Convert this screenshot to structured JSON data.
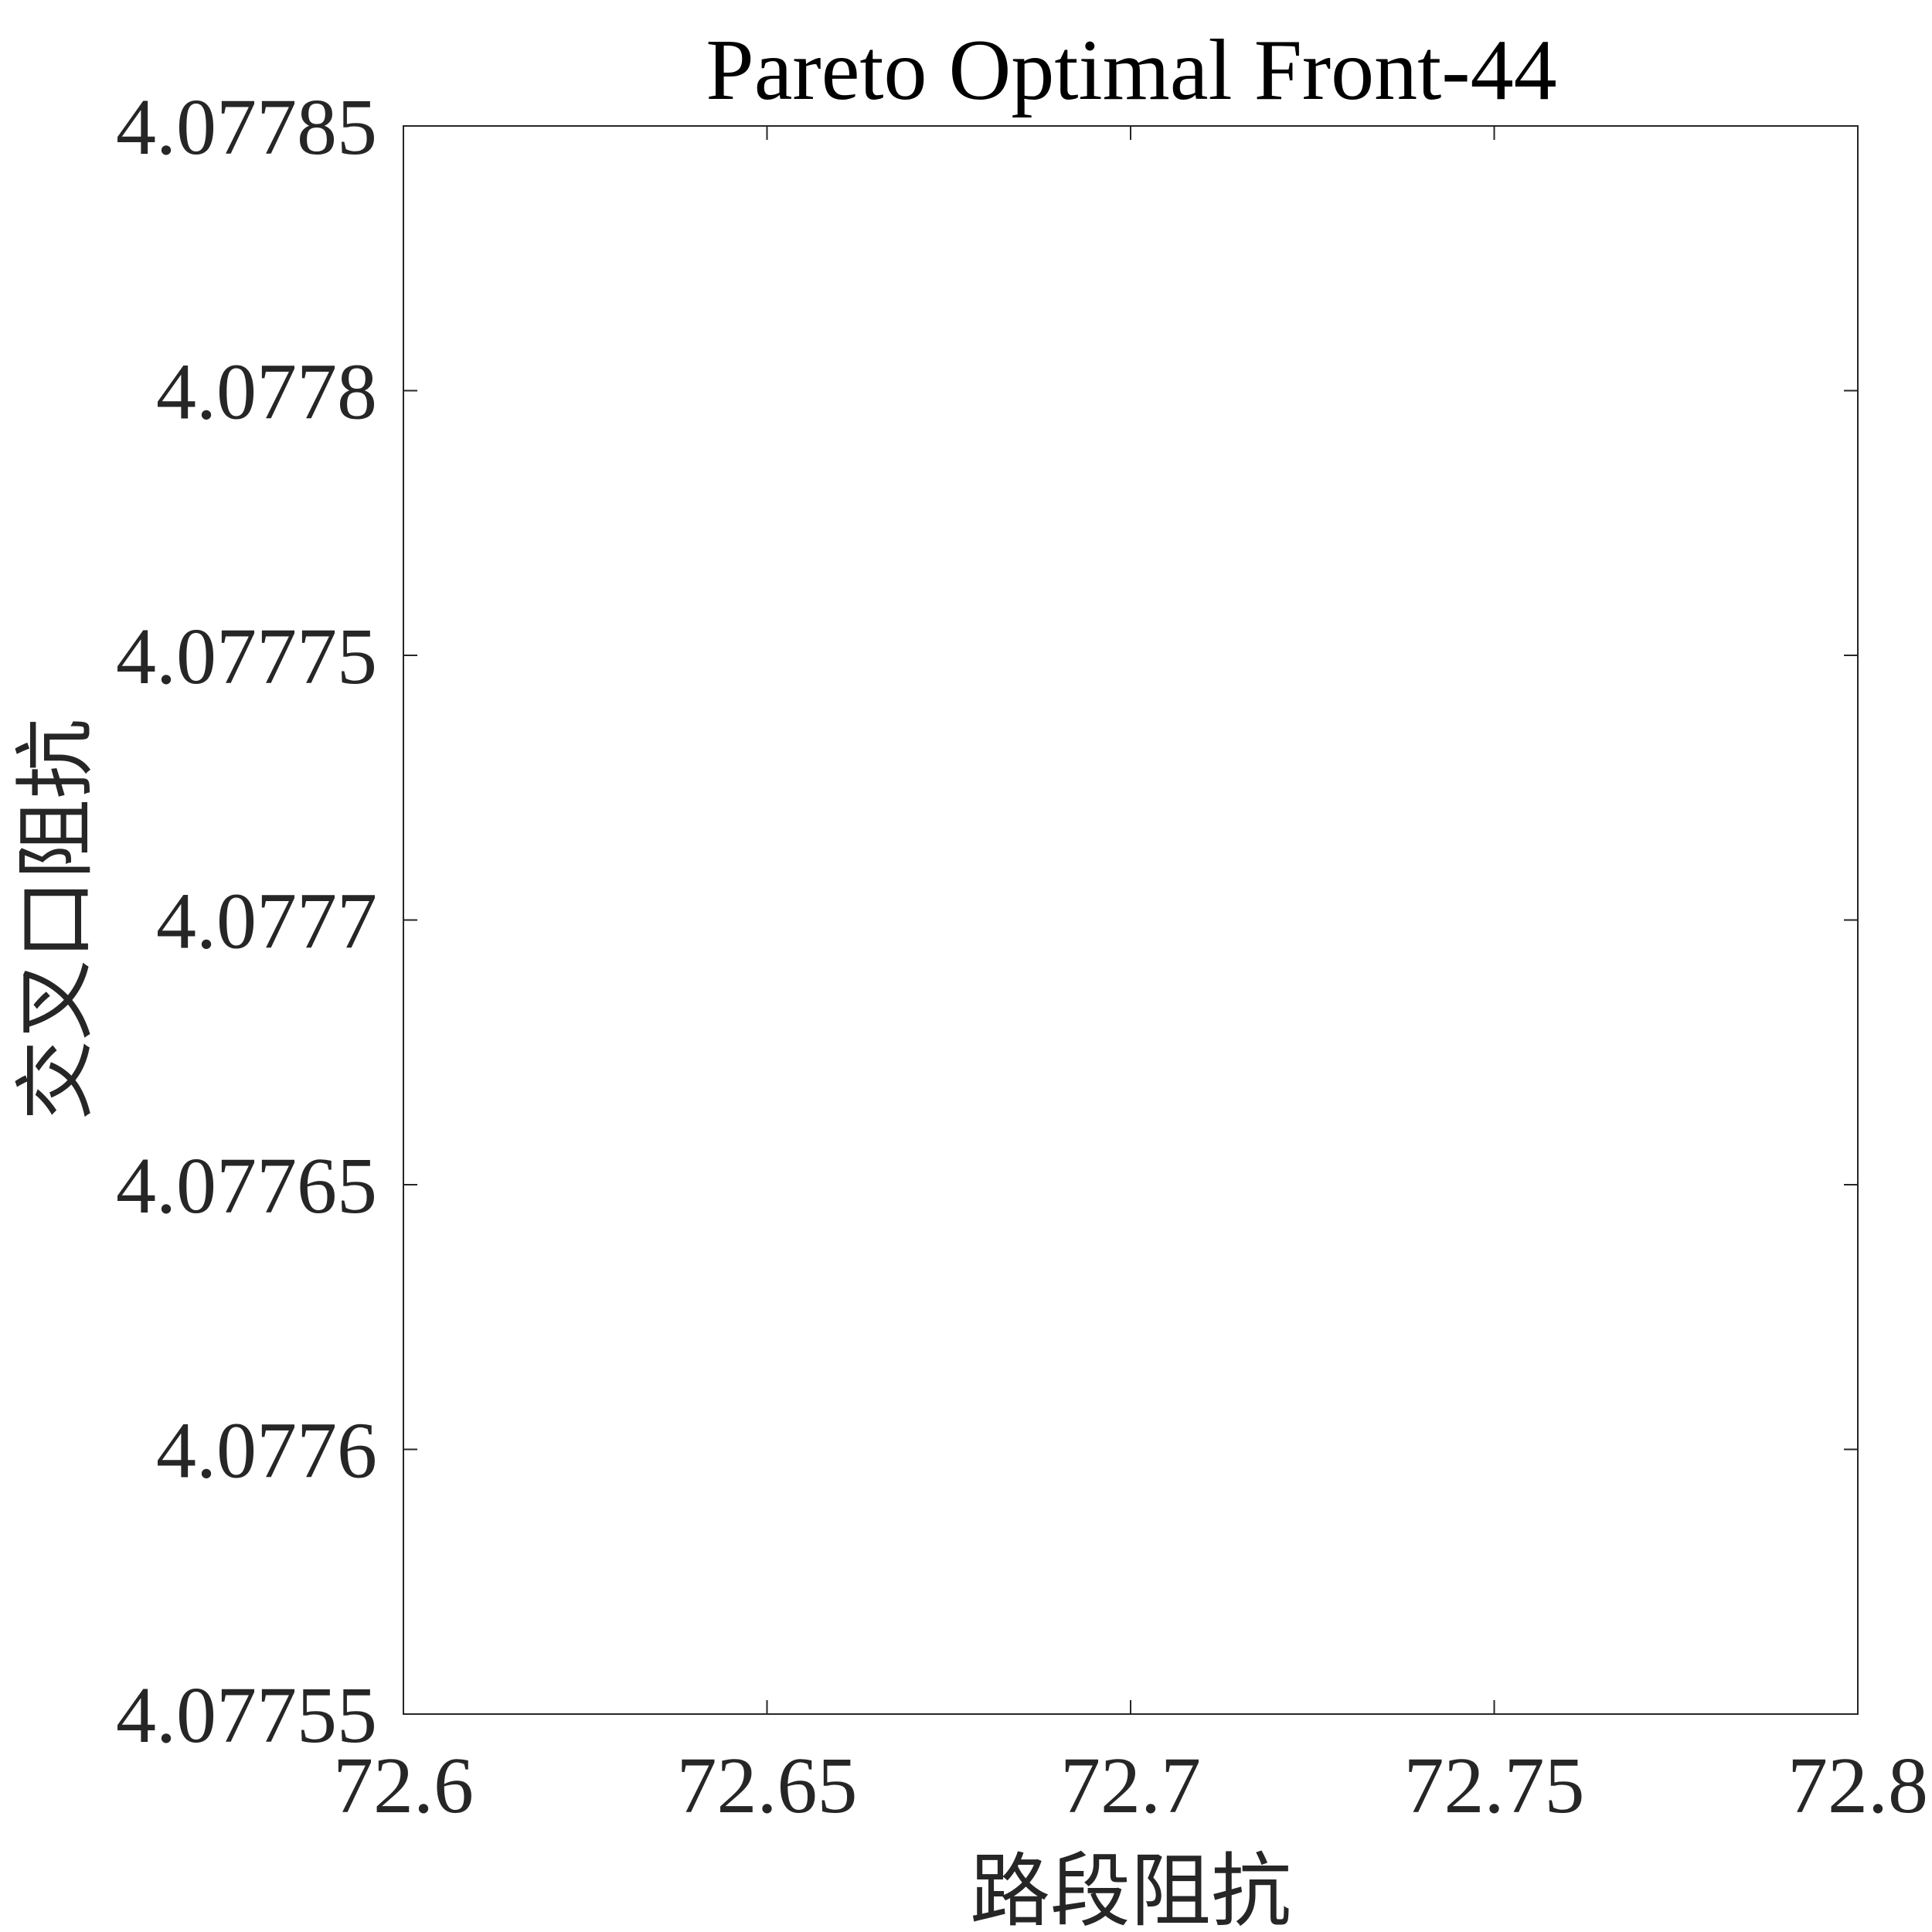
{
  "chart_data": {
    "type": "scatter",
    "title": "Pareto Optimal Front-44",
    "xlabel": "路段阻抗",
    "ylabel": "交叉口阻抗",
    "xlim": [
      72.6,
      72.8
    ],
    "ylim": [
      4.07755,
      4.07785
    ],
    "x_ticks": [
      "72.6",
      "72.65",
      "72.7",
      "72.75",
      "72.8"
    ],
    "y_ticks": [
      "4.07755",
      "4.0776",
      "4.07765",
      "4.0777",
      "4.07775",
      "4.0778",
      "4.07785"
    ],
    "grid": false,
    "box": true,
    "series": [
      {
        "x": [],
        "y": []
      }
    ]
  }
}
